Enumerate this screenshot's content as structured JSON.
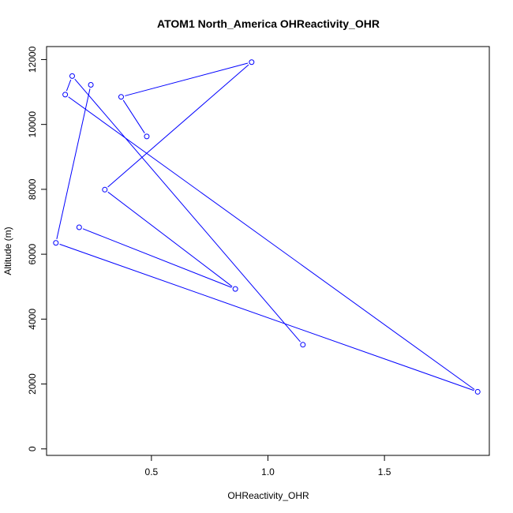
{
  "chart_data": {
    "type": "line",
    "title": "ATOM1 North_America OHReactivity_OHR",
    "xlabel": "OHReactivity_OHR",
    "ylabel": "Altitude (m)",
    "xlim": [
      0.05,
      1.95
    ],
    "ylim": [
      -200,
      12400
    ],
    "x_ticks": [
      0.5,
      1.0,
      1.5
    ],
    "x_tick_labels": [
      "0.5",
      "1.0",
      "1.5"
    ],
    "y_ticks": [
      0,
      2000,
      4000,
      6000,
      8000,
      10000,
      12000
    ],
    "y_tick_labels": [
      "0",
      "2000",
      "4000",
      "6000",
      "8000",
      "10000",
      "12000"
    ],
    "grid": false,
    "series": [
      {
        "color": "#0000ff",
        "marker": "open-circle",
        "x": [
          0.19,
          0.86,
          0.3,
          0.93,
          0.37,
          0.48
        ],
        "y": [
          6830,
          4930,
          7990,
          11920,
          10850,
          9630
        ]
      },
      {
        "color": "#0000ff",
        "marker": "open-circle",
        "x": [
          0.24,
          0.09,
          1.9,
          0.13,
          0.16,
          1.15
        ],
        "y": [
          11220,
          6350,
          1760,
          10920,
          11490,
          3210
        ]
      }
    ]
  }
}
